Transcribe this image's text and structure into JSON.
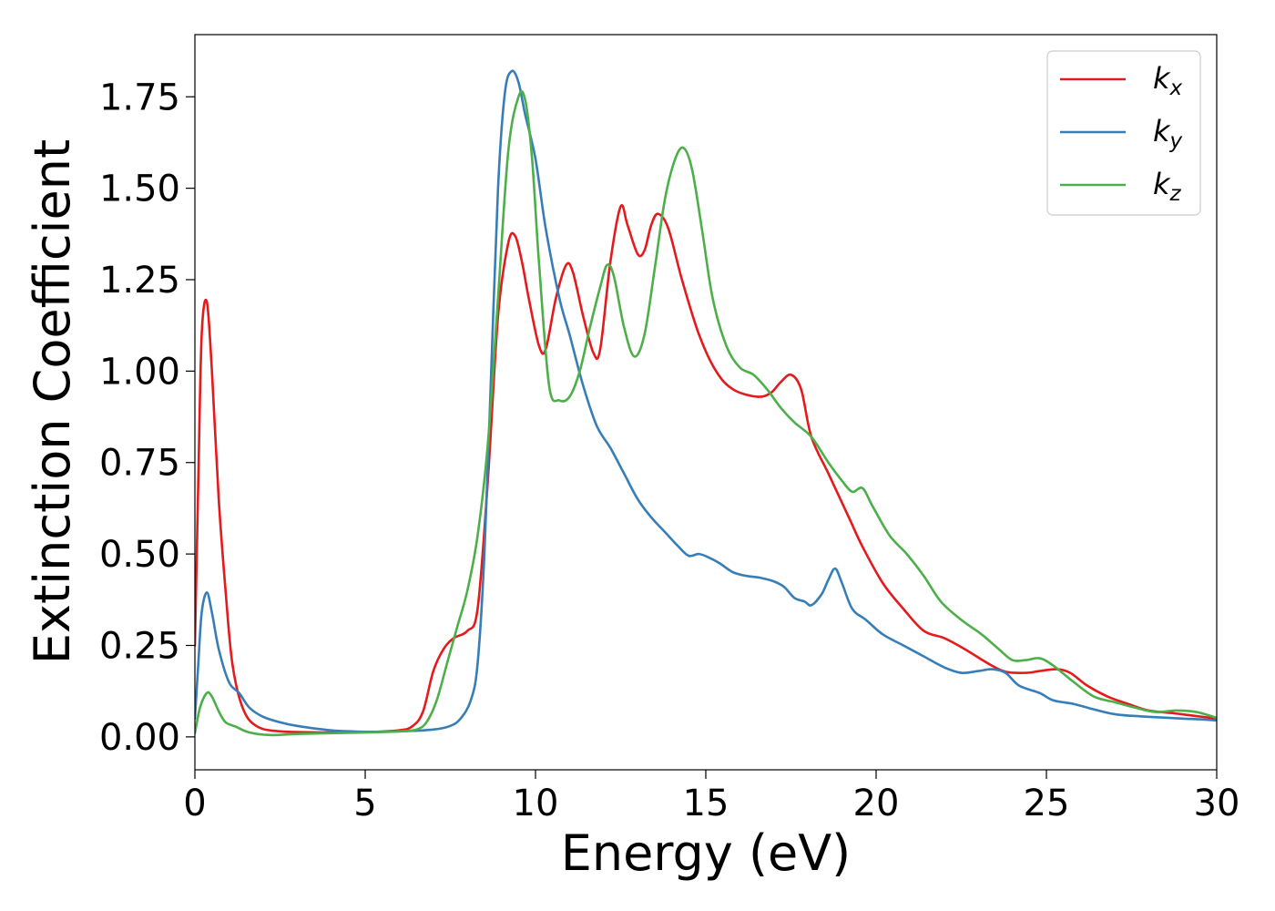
{
  "chart_data": {
    "type": "line",
    "title": "",
    "xlabel": "Energy (eV)",
    "ylabel": "Extinction Coefficient",
    "xlim": [
      0,
      30
    ],
    "ylim": [
      -0.09,
      1.92
    ],
    "xticks": [
      0,
      5,
      10,
      15,
      20,
      25,
      30
    ],
    "xtick_labels": [
      "0",
      "5",
      "10",
      "15",
      "20",
      "25",
      "30"
    ],
    "yticks": [
      0,
      0.25,
      0.5,
      0.75,
      1.0,
      1.25,
      1.5,
      1.75
    ],
    "ytick_labels": [
      "0.00",
      "0.25",
      "0.50",
      "0.75",
      "1.00",
      "1.25",
      "1.50",
      "1.75"
    ],
    "grid": false,
    "legend_position": "top-right",
    "series": [
      {
        "name": "k",
        "subscript": "x",
        "color": "#e41a1c",
        "points": [
          [
            0,
            0.25
          ],
          [
            0.1,
            0.7
          ],
          [
            0.2,
            1.1
          ],
          [
            0.35,
            1.19
          ],
          [
            0.5,
            1.0
          ],
          [
            0.7,
            0.65
          ],
          [
            0.9,
            0.4
          ],
          [
            1.1,
            0.2
          ],
          [
            1.4,
            0.08
          ],
          [
            1.8,
            0.03
          ],
          [
            2.5,
            0.015
          ],
          [
            4,
            0.012
          ],
          [
            5,
            0.013
          ],
          [
            6,
            0.018
          ],
          [
            6.4,
            0.03
          ],
          [
            6.7,
            0.07
          ],
          [
            7,
            0.18
          ],
          [
            7.3,
            0.24
          ],
          [
            7.6,
            0.27
          ],
          [
            8,
            0.29
          ],
          [
            8.3,
            0.35
          ],
          [
            8.6,
            0.7
          ],
          [
            8.9,
            1.15
          ],
          [
            9.2,
            1.35
          ],
          [
            9.4,
            1.37
          ],
          [
            9.6,
            1.3
          ],
          [
            9.8,
            1.2
          ],
          [
            10.1,
            1.07
          ],
          [
            10.3,
            1.06
          ],
          [
            10.6,
            1.2
          ],
          [
            10.9,
            1.29
          ],
          [
            11.1,
            1.27
          ],
          [
            11.4,
            1.15
          ],
          [
            11.7,
            1.05
          ],
          [
            11.9,
            1.06
          ],
          [
            12.2,
            1.3
          ],
          [
            12.5,
            1.45
          ],
          [
            12.7,
            1.4
          ],
          [
            13,
            1.32
          ],
          [
            13.2,
            1.33
          ],
          [
            13.4,
            1.4
          ],
          [
            13.6,
            1.43
          ],
          [
            13.9,
            1.39
          ],
          [
            14.3,
            1.25
          ],
          [
            14.8,
            1.1
          ],
          [
            15.3,
            1.0
          ],
          [
            15.8,
            0.95
          ],
          [
            16.5,
            0.93
          ],
          [
            16.9,
            0.94
          ],
          [
            17.2,
            0.97
          ],
          [
            17.5,
            0.99
          ],
          [
            17.8,
            0.95
          ],
          [
            18.1,
            0.82
          ],
          [
            18.6,
            0.72
          ],
          [
            19.2,
            0.6
          ],
          [
            19.6,
            0.52
          ],
          [
            20.2,
            0.42
          ],
          [
            20.8,
            0.35
          ],
          [
            21.4,
            0.29
          ],
          [
            22,
            0.27
          ],
          [
            22.6,
            0.24
          ],
          [
            23.3,
            0.2
          ],
          [
            23.8,
            0.178
          ],
          [
            24.4,
            0.175
          ],
          [
            24.8,
            0.18
          ],
          [
            25.3,
            0.185
          ],
          [
            25.7,
            0.175
          ],
          [
            26.2,
            0.14
          ],
          [
            26.8,
            0.11
          ],
          [
            27.4,
            0.09
          ],
          [
            28,
            0.072
          ],
          [
            28.7,
            0.065
          ],
          [
            29.3,
            0.058
          ],
          [
            30,
            0.05
          ]
        ]
      },
      {
        "name": "k",
        "subscript": "y",
        "color": "#377eb8",
        "points": [
          [
            0,
            0.05
          ],
          [
            0.1,
            0.2
          ],
          [
            0.2,
            0.34
          ],
          [
            0.35,
            0.395
          ],
          [
            0.5,
            0.34
          ],
          [
            0.7,
            0.24
          ],
          [
            1,
            0.15
          ],
          [
            1.3,
            0.12
          ],
          [
            1.6,
            0.08
          ],
          [
            2,
            0.055
          ],
          [
            2.5,
            0.04
          ],
          [
            3,
            0.03
          ],
          [
            4,
            0.018
          ],
          [
            5,
            0.014
          ],
          [
            6,
            0.015
          ],
          [
            7,
            0.02
          ],
          [
            7.5,
            0.03
          ],
          [
            7.8,
            0.05
          ],
          [
            8.1,
            0.1
          ],
          [
            8.3,
            0.2
          ],
          [
            8.5,
            0.5
          ],
          [
            8.7,
            1.0
          ],
          [
            8.9,
            1.5
          ],
          [
            9.1,
            1.76
          ],
          [
            9.3,
            1.82
          ],
          [
            9.5,
            1.79
          ],
          [
            9.7,
            1.7
          ],
          [
            10,
            1.58
          ],
          [
            10.3,
            1.39
          ],
          [
            10.7,
            1.2
          ],
          [
            11,
            1.1
          ],
          [
            11.4,
            0.96
          ],
          [
            11.8,
            0.85
          ],
          [
            12.2,
            0.79
          ],
          [
            12.6,
            0.72
          ],
          [
            13,
            0.65
          ],
          [
            13.4,
            0.6
          ],
          [
            13.8,
            0.56
          ],
          [
            14.2,
            0.52
          ],
          [
            14.5,
            0.495
          ],
          [
            14.8,
            0.5
          ],
          [
            15.1,
            0.49
          ],
          [
            15.4,
            0.475
          ],
          [
            15.8,
            0.45
          ],
          [
            16.2,
            0.44
          ],
          [
            16.6,
            0.435
          ],
          [
            17,
            0.425
          ],
          [
            17.3,
            0.41
          ],
          [
            17.6,
            0.38
          ],
          [
            17.9,
            0.37
          ],
          [
            18.1,
            0.36
          ],
          [
            18.4,
            0.39
          ],
          [
            18.6,
            0.43
          ],
          [
            18.8,
            0.46
          ],
          [
            19,
            0.42
          ],
          [
            19.3,
            0.35
          ],
          [
            19.7,
            0.32
          ],
          [
            20.2,
            0.28
          ],
          [
            20.8,
            0.25
          ],
          [
            21.4,
            0.22
          ],
          [
            22,
            0.19
          ],
          [
            22.5,
            0.175
          ],
          [
            23,
            0.18
          ],
          [
            23.4,
            0.185
          ],
          [
            23.8,
            0.175
          ],
          [
            24.2,
            0.14
          ],
          [
            24.8,
            0.12
          ],
          [
            25.2,
            0.1
          ],
          [
            25.8,
            0.09
          ],
          [
            26.4,
            0.075
          ],
          [
            27,
            0.062
          ],
          [
            27.6,
            0.057
          ],
          [
            28.2,
            0.054
          ],
          [
            29,
            0.05
          ],
          [
            29.5,
            0.048
          ],
          [
            30,
            0.045
          ]
        ]
      },
      {
        "name": "k",
        "subscript": "z",
        "color": "#4daf4a",
        "points": [
          [
            0,
            0.01
          ],
          [
            0.15,
            0.08
          ],
          [
            0.35,
            0.12
          ],
          [
            0.5,
            0.11
          ],
          [
            0.7,
            0.07
          ],
          [
            0.9,
            0.04
          ],
          [
            1.2,
            0.028
          ],
          [
            1.6,
            0.012
          ],
          [
            2.2,
            0.005
          ],
          [
            3,
            0.008
          ],
          [
            4,
            0.01
          ],
          [
            5,
            0.012
          ],
          [
            6,
            0.015
          ],
          [
            6.5,
            0.02
          ],
          [
            6.8,
            0.04
          ],
          [
            7.1,
            0.1
          ],
          [
            7.4,
            0.2
          ],
          [
            7.7,
            0.3
          ],
          [
            8,
            0.4
          ],
          [
            8.3,
            0.55
          ],
          [
            8.6,
            0.8
          ],
          [
            8.9,
            1.2
          ],
          [
            9.2,
            1.6
          ],
          [
            9.5,
            1.75
          ],
          [
            9.7,
            1.74
          ],
          [
            9.9,
            1.58
          ],
          [
            10.1,
            1.3
          ],
          [
            10.4,
            0.96
          ],
          [
            10.7,
            0.92
          ],
          [
            11,
            0.93
          ],
          [
            11.3,
            1.0
          ],
          [
            11.6,
            1.12
          ],
          [
            11.9,
            1.23
          ],
          [
            12.1,
            1.29
          ],
          [
            12.3,
            1.26
          ],
          [
            12.6,
            1.12
          ],
          [
            12.9,
            1.04
          ],
          [
            13.2,
            1.1
          ],
          [
            13.5,
            1.28
          ],
          [
            13.8,
            1.47
          ],
          [
            14.1,
            1.58
          ],
          [
            14.35,
            1.61
          ],
          [
            14.6,
            1.55
          ],
          [
            14.9,
            1.38
          ],
          [
            15.2,
            1.2
          ],
          [
            15.6,
            1.07
          ],
          [
            16,
            1.01
          ],
          [
            16.4,
            0.99
          ],
          [
            16.8,
            0.95
          ],
          [
            17.2,
            0.9
          ],
          [
            17.6,
            0.86
          ],
          [
            18.1,
            0.82
          ],
          [
            18.6,
            0.75
          ],
          [
            19,
            0.7
          ],
          [
            19.3,
            0.67
          ],
          [
            19.6,
            0.68
          ],
          [
            19.9,
            0.63
          ],
          [
            20.4,
            0.55
          ],
          [
            20.9,
            0.5
          ],
          [
            21.4,
            0.44
          ],
          [
            21.9,
            0.37
          ],
          [
            22.5,
            0.32
          ],
          [
            23.1,
            0.28
          ],
          [
            23.6,
            0.24
          ],
          [
            24,
            0.21
          ],
          [
            24.4,
            0.21
          ],
          [
            24.8,
            0.215
          ],
          [
            25.2,
            0.195
          ],
          [
            25.8,
            0.15
          ],
          [
            26.4,
            0.11
          ],
          [
            27,
            0.095
          ],
          [
            27.6,
            0.08
          ],
          [
            28.2,
            0.068
          ],
          [
            28.8,
            0.072
          ],
          [
            29.4,
            0.068
          ],
          [
            30,
            0.052
          ]
        ]
      }
    ]
  }
}
